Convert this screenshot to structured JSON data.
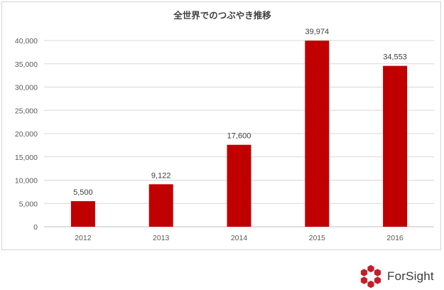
{
  "chart_data": {
    "type": "bar",
    "title": "全世界でのつぶやき推移",
    "categories": [
      "2012",
      "2013",
      "2014",
      "2015",
      "2016"
    ],
    "values": [
      5500,
      9122,
      17600,
      39974,
      34553
    ],
    "value_labels": [
      "5,500",
      "9,122",
      "17,600",
      "39,974",
      "34,553"
    ],
    "xlabel": "",
    "ylabel": "",
    "ylim": [
      0,
      40000
    ],
    "yticks": [
      0,
      5000,
      10000,
      15000,
      20000,
      25000,
      30000,
      35000,
      40000
    ],
    "ytick_labels": [
      "0",
      "5,000",
      "10,000",
      "15,000",
      "20,000",
      "25,000",
      "30,000",
      "35,000",
      "40,000"
    ],
    "grid": true,
    "legend": "none",
    "bar_color": "#c00000"
  },
  "brand": {
    "name": "ForSight",
    "color": "#c41e2a"
  }
}
